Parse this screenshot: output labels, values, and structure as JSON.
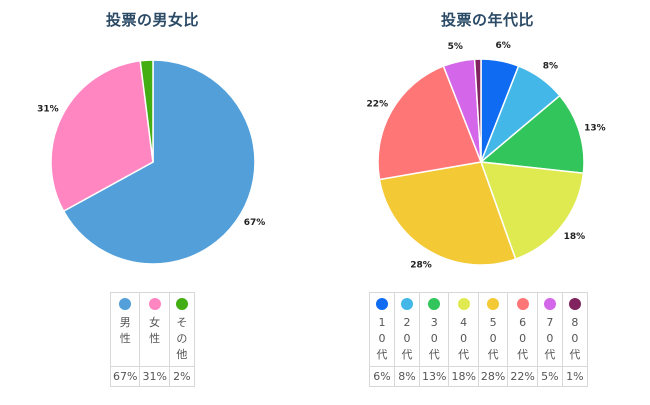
{
  "chart_data": [
    {
      "type": "pie",
      "title": "投票の男女比",
      "categories": [
        "男性",
        "女性",
        "その他"
      ],
      "values": [
        67,
        31,
        2
      ],
      "labels": [
        "67%",
        "31%",
        "2%"
      ],
      "colors": [
        "#529fd9",
        "#ff86c1",
        "#43ad14"
      ],
      "legend": "bottom"
    },
    {
      "type": "pie",
      "title": "投票の年代比",
      "categories": [
        "10代",
        "20代",
        "30代",
        "40代",
        "50代",
        "60代",
        "70代",
        "80代"
      ],
      "values": [
        6,
        8,
        13,
        18,
        28,
        22,
        5,
        1
      ],
      "labels": [
        "6%",
        "8%",
        "13%",
        "18%",
        "28%",
        "22%",
        "5%",
        "1%"
      ],
      "colors": [
        "#0f6cf2",
        "#43b8e8",
        "#32c55b",
        "#dfea51",
        "#f4c936",
        "#ff7677",
        "#d466ea",
        "#80235f"
      ],
      "legend": "bottom"
    }
  ]
}
